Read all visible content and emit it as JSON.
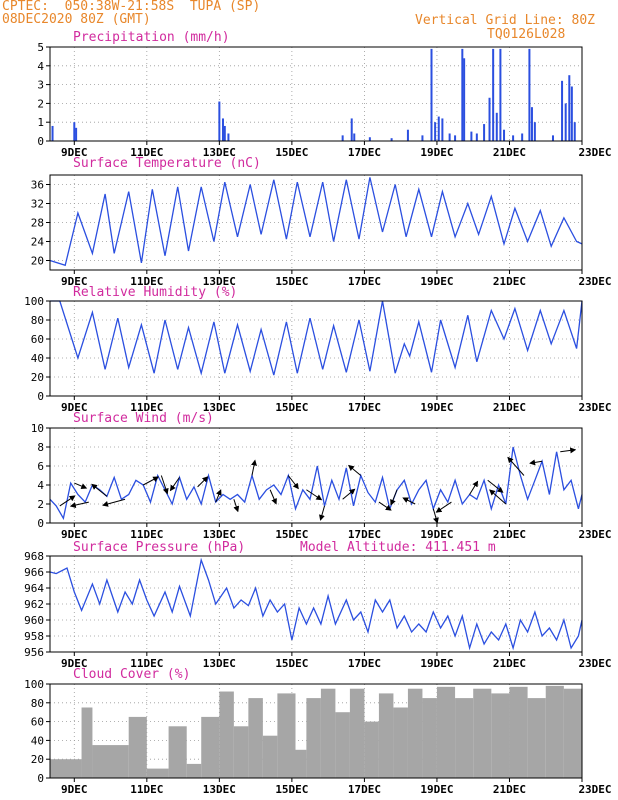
{
  "header": {
    "line1_left": "CPTEC:  050:38W-21:58S  TUPA (SP)",
    "line2_left": "08DEC2020 80Z (GMT)",
    "line1_right": "Vertical Grid Line: 80Z",
    "line2_right": "TQ0126L028"
  },
  "colors": {
    "header": "#e8872b",
    "title": "#d12b9e",
    "line": "#2b4fe0",
    "cloud": "#a6a6a6",
    "wind_arrow": "#000000"
  },
  "x_ticks": [
    "9DEC",
    "11DEC",
    "13DEC",
    "15DEC",
    "17DEC",
    "19DEC",
    "21DEC",
    "23DEC"
  ],
  "chart_data": [
    {
      "id": "precip",
      "type": "bar",
      "title": "Precipitation (mm/h)",
      "ylim": [
        0,
        5
      ],
      "yticks": [
        0,
        1,
        2,
        3,
        4,
        5
      ],
      "x_range_days": [
        8.33,
        23.0
      ],
      "events": [
        {
          "day": 8.4,
          "value": 0.8
        },
        {
          "day": 9.0,
          "value": 1.0
        },
        {
          "day": 9.05,
          "value": 0.7
        },
        {
          "day": 13.0,
          "value": 2.1
        },
        {
          "day": 13.1,
          "value": 1.2
        },
        {
          "day": 13.15,
          "value": 0.8
        },
        {
          "day": 13.25,
          "value": 0.4
        },
        {
          "day": 16.4,
          "value": 0.3
        },
        {
          "day": 16.65,
          "value": 1.2
        },
        {
          "day": 16.72,
          "value": 0.4
        },
        {
          "day": 17.15,
          "value": 0.2
        },
        {
          "day": 17.75,
          "value": 0.15
        },
        {
          "day": 18.2,
          "value": 0.6
        },
        {
          "day": 18.6,
          "value": 0.3
        },
        {
          "day": 18.85,
          "value": 4.9
        },
        {
          "day": 18.95,
          "value": 1.0
        },
        {
          "day": 19.05,
          "value": 1.3
        },
        {
          "day": 19.15,
          "value": 1.2
        },
        {
          "day": 19.35,
          "value": 0.4
        },
        {
          "day": 19.5,
          "value": 0.3
        },
        {
          "day": 19.7,
          "value": 4.9
        },
        {
          "day": 19.75,
          "value": 4.4
        },
        {
          "day": 19.95,
          "value": 0.5
        },
        {
          "day": 20.1,
          "value": 0.4
        },
        {
          "day": 20.3,
          "value": 0.9
        },
        {
          "day": 20.45,
          "value": 2.3
        },
        {
          "day": 20.55,
          "value": 4.9
        },
        {
          "day": 20.65,
          "value": 1.5
        },
        {
          "day": 20.75,
          "value": 4.9
        },
        {
          "day": 20.85,
          "value": 0.6
        },
        {
          "day": 21.1,
          "value": 0.3
        },
        {
          "day": 21.35,
          "value": 0.4
        },
        {
          "day": 21.55,
          "value": 4.9
        },
        {
          "day": 21.62,
          "value": 1.8
        },
        {
          "day": 21.7,
          "value": 1.0
        },
        {
          "day": 22.2,
          "value": 0.3
        },
        {
          "day": 22.45,
          "value": 3.2
        },
        {
          "day": 22.55,
          "value": 2.0
        },
        {
          "day": 22.65,
          "value": 3.5
        },
        {
          "day": 22.72,
          "value": 2.9
        },
        {
          "day": 22.8,
          "value": 1.0
        }
      ]
    },
    {
      "id": "temp",
      "type": "line",
      "title": "Surface Temperature (nC)",
      "ylim": [
        18,
        38
      ],
      "yticks": [
        20,
        24,
        28,
        32,
        36
      ],
      "series": [
        {
          "days": [
            8.33,
            8.75,
            9.1,
            9.5,
            9.85,
            10.1,
            10.5,
            10.85,
            11.15,
            11.5,
            11.85,
            12.15,
            12.5,
            12.85,
            13.15,
            13.5,
            13.85,
            14.15,
            14.5,
            14.85,
            15.15,
            15.5,
            15.85,
            16.15,
            16.5,
            16.85,
            17.15,
            17.5,
            17.85,
            18.15,
            18.5,
            18.85,
            19.15,
            19.5,
            19.85,
            20.15,
            20.5,
            20.85,
            21.15,
            21.5,
            21.85,
            22.15,
            22.5,
            22.85,
            23.0
          ],
          "values": [
            20,
            19,
            30,
            21.5,
            34,
            21.5,
            34.5,
            19.5,
            35,
            21,
            35.5,
            22,
            35.5,
            24,
            36.5,
            25,
            36,
            25.5,
            37,
            24.5,
            36.5,
            25,
            36.5,
            24,
            37,
            24.5,
            37.5,
            26,
            36,
            25,
            35,
            25,
            34.5,
            25,
            32,
            25.5,
            33.5,
            23.5,
            31,
            24,
            30.5,
            23,
            29,
            24,
            23.5
          ]
        }
      ]
    },
    {
      "id": "rh",
      "type": "line",
      "title": "Relative Humidity (%)",
      "ylim": [
        0,
        100
      ],
      "yticks": [
        0,
        20,
        40,
        60,
        80,
        100
      ],
      "series": [
        {
          "days": [
            8.33,
            8.6,
            9.1,
            9.5,
            9.85,
            10.2,
            10.5,
            10.85,
            11.2,
            11.5,
            11.85,
            12.15,
            12.5,
            12.85,
            13.15,
            13.5,
            13.85,
            14.15,
            14.5,
            14.85,
            15.15,
            15.5,
            15.85,
            16.15,
            16.5,
            16.85,
            17.15,
            17.5,
            17.85,
            18.1,
            18.25,
            18.5,
            18.85,
            19.1,
            19.5,
            19.85,
            20.1,
            20.5,
            20.85,
            21.15,
            21.5,
            21.85,
            22.15,
            22.5,
            22.85,
            23.0
          ],
          "values": [
            100,
            100,
            40,
            88,
            28,
            82,
            30,
            75,
            24,
            80,
            28,
            72,
            24,
            78,
            24,
            75,
            26,
            70,
            22,
            78,
            24,
            82,
            28,
            74,
            25,
            80,
            26,
            100,
            24,
            55,
            42,
            78,
            25,
            80,
            30,
            85,
            36,
            90,
            60,
            92,
            48,
            90,
            55,
            90,
            50,
            100
          ]
        }
      ]
    },
    {
      "id": "wind",
      "type": "line",
      "title": "Surface Wind (m/s)",
      "ylim": [
        0,
        10
      ],
      "yticks": [
        0,
        2,
        4,
        6,
        8,
        10
      ],
      "series": [
        {
          "days": [
            8.33,
            8.5,
            8.7,
            8.9,
            9.1,
            9.3,
            9.5,
            9.7,
            9.9,
            10.1,
            10.3,
            10.5,
            10.7,
            10.9,
            11.1,
            11.3,
            11.5,
            11.7,
            11.9,
            12.1,
            12.3,
            12.5,
            12.7,
            12.9,
            13.1,
            13.3,
            13.5,
            13.7,
            13.9,
            14.1,
            14.3,
            14.5,
            14.7,
            14.9,
            15.1,
            15.3,
            15.5,
            15.7,
            15.9,
            16.1,
            16.3,
            16.5,
            16.7,
            16.9,
            17.1,
            17.3,
            17.5,
            17.7,
            17.9,
            18.1,
            18.3,
            18.5,
            18.7,
            18.9,
            19.1,
            19.3,
            19.5,
            19.7,
            19.9,
            20.1,
            20.3,
            20.5,
            20.7,
            20.9,
            21.1,
            21.3,
            21.5,
            21.7,
            21.9,
            22.1,
            22.3,
            22.5,
            22.7,
            22.9,
            23.0
          ],
          "values": [
            2.5,
            1.8,
            0.5,
            4.2,
            3.0,
            2.2,
            4.0,
            3.5,
            2.8,
            4.8,
            2.5,
            3.0,
            4.5,
            4.0,
            2.2,
            5.0,
            3.5,
            2.0,
            4.8,
            2.5,
            3.8,
            2.0,
            5.0,
            2.2,
            3.0,
            2.5,
            3.0,
            2.2,
            5.0,
            2.5,
            3.5,
            4.0,
            3.0,
            5.0,
            1.5,
            3.5,
            2.5,
            6.0,
            1.8,
            4.5,
            2.5,
            5.8,
            1.8,
            5.0,
            3.2,
            2.2,
            4.8,
            1.5,
            3.5,
            4.5,
            2.0,
            3.5,
            4.5,
            1.5,
            3.5,
            2.2,
            4.5,
            2.0,
            3.0,
            2.5,
            4.5,
            1.5,
            4.0,
            2.0,
            8.0,
            5.0,
            2.5,
            4.5,
            6.5,
            3.0,
            7.5,
            3.5,
            4.5,
            1.5,
            3.0
          ]
        }
      ],
      "vectors": [
        {
          "day": 8.6,
          "u": 1.5,
          "v": 1.0
        },
        {
          "day": 9.0,
          "u": 1.2,
          "v": -0.5
        },
        {
          "day": 9.4,
          "u": -1.8,
          "v": -0.4
        },
        {
          "day": 9.9,
          "u": -1.5,
          "v": 1.2
        },
        {
          "day": 10.4,
          "u": -2.2,
          "v": -0.6
        },
        {
          "day": 10.9,
          "u": 1.5,
          "v": 0.8
        },
        {
          "day": 11.4,
          "u": 0.6,
          "v": -1.8
        },
        {
          "day": 11.9,
          "u": -0.9,
          "v": -1.3
        },
        {
          "day": 12.4,
          "u": 1.0,
          "v": 1.0
        },
        {
          "day": 12.9,
          "u": 0.5,
          "v": 1.2
        },
        {
          "day": 13.4,
          "u": 0.4,
          "v": -1.2
        },
        {
          "day": 13.9,
          "u": 0.3,
          "v": 1.5
        },
        {
          "day": 14.4,
          "u": 0.6,
          "v": -1.4
        },
        {
          "day": 14.9,
          "u": 1.0,
          "v": -1.3
        },
        {
          "day": 15.4,
          "u": 1.5,
          "v": -1.0
        },
        {
          "day": 15.9,
          "u": -0.4,
          "v": -1.4
        },
        {
          "day": 16.4,
          "u": 1.2,
          "v": 1.0
        },
        {
          "day": 16.9,
          "u": -1.2,
          "v": 1.0
        },
        {
          "day": 17.4,
          "u": 1.2,
          "v": -0.8
        },
        {
          "day": 17.9,
          "u": -0.6,
          "v": -1.5
        },
        {
          "day": 18.4,
          "u": -1.2,
          "v": 0.6
        },
        {
          "day": 18.9,
          "u": 0.4,
          "v": -1.4
        },
        {
          "day": 19.4,
          "u": -1.5,
          "v": -1.0
        },
        {
          "day": 19.9,
          "u": 0.8,
          "v": 1.3
        },
        {
          "day": 20.4,
          "u": 1.5,
          "v": -1.2
        },
        {
          "day": 20.9,
          "u": -1.6,
          "v": 1.4
        },
        {
          "day": 21.4,
          "u": -1.6,
          "v": 1.8
        },
        {
          "day": 21.9,
          "u": -1.2,
          "v": -0.2
        },
        {
          "day": 22.4,
          "u": 1.5,
          "v": 0.2
        }
      ]
    },
    {
      "id": "pressure",
      "type": "line",
      "title": "Surface Pressure (hPa)",
      "annotation": "Model Altitude: 411.451 m",
      "ylim": [
        956,
        968
      ],
      "yticks": [
        956,
        958,
        960,
        962,
        964,
        966,
        968
      ],
      "series": [
        {
          "days": [
            8.33,
            8.5,
            8.8,
            9.0,
            9.2,
            9.5,
            9.7,
            9.9,
            10.2,
            10.4,
            10.6,
            10.8,
            11.0,
            11.2,
            11.5,
            11.7,
            11.9,
            12.2,
            12.5,
            12.7,
            12.9,
            13.2,
            13.4,
            13.6,
            13.8,
            14.0,
            14.2,
            14.4,
            14.6,
            14.8,
            15.0,
            15.2,
            15.4,
            15.6,
            15.8,
            16.0,
            16.2,
            16.5,
            16.7,
            16.9,
            17.1,
            17.3,
            17.5,
            17.7,
            17.9,
            18.1,
            18.3,
            18.5,
            18.7,
            18.9,
            19.1,
            19.3,
            19.5,
            19.7,
            19.9,
            20.1,
            20.3,
            20.5,
            20.7,
            20.9,
            21.1,
            21.3,
            21.5,
            21.7,
            21.9,
            22.1,
            22.3,
            22.5,
            22.7,
            22.9,
            23.0
          ],
          "values": [
            966,
            965.8,
            966.5,
            963.5,
            961.2,
            964.5,
            962,
            965,
            961,
            963.5,
            962,
            965,
            962.5,
            960.5,
            963.5,
            961,
            964.2,
            960.5,
            967.5,
            965,
            962,
            964,
            961.5,
            962.5,
            961.8,
            964,
            960.5,
            962.5,
            961,
            962,
            957.5,
            961.5,
            959.5,
            961.5,
            959.5,
            963,
            959.5,
            962.5,
            960,
            961,
            958.5,
            962.5,
            961,
            962.5,
            959,
            960.5,
            958.5,
            959.5,
            958.5,
            961,
            959,
            960.5,
            958,
            960.5,
            956.5,
            959.5,
            957,
            958.5,
            957.5,
            959.5,
            956.5,
            960,
            958.5,
            961,
            958,
            959,
            957.5,
            960,
            956.5,
            958,
            960
          ]
        }
      ]
    },
    {
      "id": "cloud",
      "type": "bar",
      "title": "Cloud Cover (%)",
      "ylim": [
        0,
        100
      ],
      "yticks": [
        0,
        20,
        40,
        60,
        80,
        100
      ],
      "segments": [
        {
          "start": 8.33,
          "end": 9.2,
          "value": 20
        },
        {
          "start": 9.2,
          "end": 9.5,
          "value": 75
        },
        {
          "start": 9.5,
          "end": 10.5,
          "value": 35
        },
        {
          "start": 10.5,
          "end": 11.0,
          "value": 65
        },
        {
          "start": 11.0,
          "end": 11.6,
          "value": 10
        },
        {
          "start": 11.6,
          "end": 12.1,
          "value": 55
        },
        {
          "start": 12.1,
          "end": 12.5,
          "value": 15
        },
        {
          "start": 12.5,
          "end": 13.0,
          "value": 65
        },
        {
          "start": 13.0,
          "end": 13.4,
          "value": 92
        },
        {
          "start": 13.4,
          "end": 13.8,
          "value": 55
        },
        {
          "start": 13.8,
          "end": 14.2,
          "value": 85
        },
        {
          "start": 14.2,
          "end": 14.6,
          "value": 45
        },
        {
          "start": 14.6,
          "end": 15.1,
          "value": 90
        },
        {
          "start": 15.1,
          "end": 15.4,
          "value": 30
        },
        {
          "start": 15.4,
          "end": 15.8,
          "value": 85
        },
        {
          "start": 15.8,
          "end": 16.2,
          "value": 95
        },
        {
          "start": 16.2,
          "end": 16.6,
          "value": 70
        },
        {
          "start": 16.6,
          "end": 17.0,
          "value": 95
        },
        {
          "start": 17.0,
          "end": 17.4,
          "value": 60
        },
        {
          "start": 17.4,
          "end": 17.8,
          "value": 90
        },
        {
          "start": 17.8,
          "end": 18.2,
          "value": 75
        },
        {
          "start": 18.2,
          "end": 18.6,
          "value": 95
        },
        {
          "start": 18.6,
          "end": 19.0,
          "value": 85
        },
        {
          "start": 19.0,
          "end": 19.5,
          "value": 97
        },
        {
          "start": 19.5,
          "end": 20.0,
          "value": 85
        },
        {
          "start": 20.0,
          "end": 20.5,
          "value": 95
        },
        {
          "start": 20.5,
          "end": 21.0,
          "value": 90
        },
        {
          "start": 21.0,
          "end": 21.5,
          "value": 97
        },
        {
          "start": 21.5,
          "end": 22.0,
          "value": 85
        },
        {
          "start": 22.0,
          "end": 22.5,
          "value": 98
        },
        {
          "start": 22.5,
          "end": 23.0,
          "value": 95
        }
      ]
    }
  ]
}
